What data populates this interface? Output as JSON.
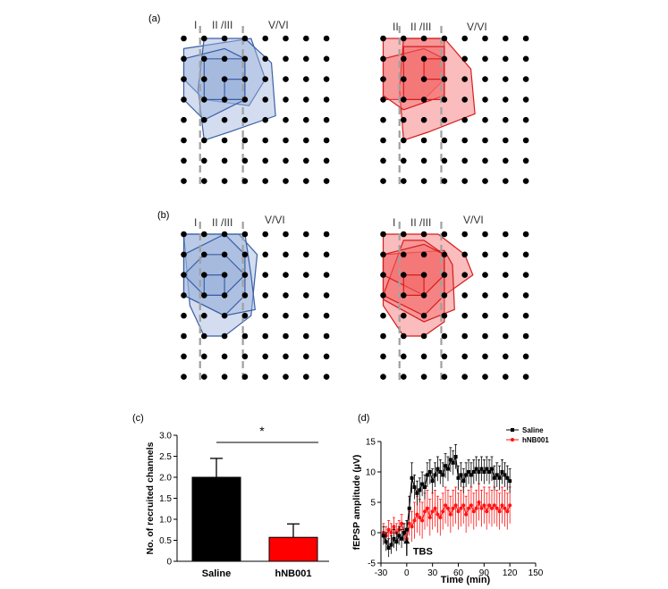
{
  "panels": {
    "a": {
      "label": "(a)",
      "layer_labels": [
        "I",
        "II /III",
        "V/VI"
      ],
      "right_layer_labels": [
        "II",
        "II /III",
        "V/VI"
      ]
    },
    "b": {
      "label": "(b)",
      "layer_labels": [
        "I",
        "II /III",
        "V/VI"
      ]
    },
    "c": {
      "label": "(c)",
      "significance": "*"
    },
    "d": {
      "label": "(d)",
      "annotation": "TBS"
    }
  },
  "colors": {
    "blue_fill": "#9db3dc",
    "blue_stroke": "#3a5fa6",
    "red_fill": "#f46a6a",
    "red_stroke": "#d61c1c",
    "dot": "#000000",
    "dash": "#a0a0a0",
    "saline": "#000000",
    "hnb001": "#ff1111"
  },
  "chart_data": [
    {
      "type": "bar",
      "categories": [
        "Saline",
        "hNB001"
      ],
      "values": [
        2.0,
        0.57
      ],
      "errors": [
        0.45,
        0.32
      ],
      "bar_colors": [
        "#000000",
        "#ff0000"
      ],
      "xlabel": "",
      "ylabel": "No. of recruited channels",
      "ylim": [
        0,
        3.0
      ],
      "yticks": [
        "0",
        "0.5",
        "1.0",
        "1.5",
        "2.0",
        "2.5",
        "3.0"
      ],
      "grid": false
    },
    {
      "type": "line",
      "xlabel": "Time (min)",
      "ylabel": "fEPSP amplitude (µV)",
      "xlim": [
        -30,
        150
      ],
      "ylim": [
        -5,
        15
      ],
      "xticks": [
        "-30",
        "0",
        "30",
        "60",
        "90",
        "120",
        "150"
      ],
      "yticks": [
        "-5",
        "0",
        "5",
        "10",
        "15"
      ],
      "legend_position": "top-right",
      "grid": false,
      "series": [
        {
          "name": "Saline",
          "color": "#000000",
          "marker": "square",
          "x": [
            -27,
            -24,
            -21,
            -18,
            -15,
            -12,
            -9,
            -6,
            -3,
            0,
            3,
            6,
            9,
            12,
            15,
            18,
            21,
            24,
            27,
            30,
            33,
            36,
            39,
            42,
            45,
            48,
            51,
            54,
            57,
            60,
            63,
            66,
            69,
            72,
            75,
            78,
            81,
            84,
            87,
            90,
            93,
            96,
            99,
            102,
            105,
            108,
            111,
            114,
            117,
            120
          ],
          "y": [
            -0.5,
            -1.5,
            -2.5,
            -2.0,
            -1.0,
            -1.5,
            -0.5,
            -1.0,
            0.0,
            0.5,
            4.0,
            9.0,
            7.5,
            6.5,
            7.0,
            8.0,
            7.5,
            9.5,
            10.0,
            8.5,
            9.5,
            10.5,
            10.0,
            9.5,
            11.0,
            10.5,
            12.0,
            11.5,
            12.5,
            9.0,
            9.5,
            8.5,
            9.5,
            10.0,
            9.5,
            10.0,
            10.5,
            10.0,
            10.5,
            10.0,
            10.5,
            10.0,
            10.5,
            9.0,
            9.5,
            9.0,
            10.0,
            9.5,
            9.0,
            8.5
          ],
          "err": [
            1.5,
            1.5,
            1.5,
            1.5,
            1.5,
            1.5,
            1.5,
            1.5,
            1.5,
            1.5,
            2.0,
            2.5,
            2.0,
            2.0,
            2.0,
            2.0,
            2.0,
            2.0,
            2.0,
            2.0,
            2.0,
            2.0,
            2.0,
            2.0,
            2.0,
            2.0,
            2.0,
            2.0,
            2.0,
            2.0,
            2.0,
            2.0,
            2.0,
            2.0,
            2.0,
            2.0,
            2.0,
            2.0,
            2.0,
            2.0,
            2.0,
            2.0,
            2.0,
            2.0,
            2.0,
            2.0,
            2.0,
            2.0,
            2.0,
            2.0
          ]
        },
        {
          "name": "hNB001",
          "color": "#ff1111",
          "marker": "circle",
          "x": [
            -27,
            -24,
            -21,
            -18,
            -15,
            -12,
            -9,
            -6,
            -3,
            0,
            3,
            6,
            9,
            12,
            15,
            18,
            21,
            24,
            27,
            30,
            33,
            36,
            39,
            42,
            45,
            48,
            51,
            54,
            57,
            60,
            63,
            66,
            69,
            72,
            75,
            78,
            81,
            84,
            87,
            90,
            93,
            96,
            99,
            102,
            105,
            108,
            111,
            114,
            117,
            120
          ],
          "y": [
            0.0,
            -0.5,
            0.5,
            0.0,
            1.0,
            0.0,
            0.5,
            1.5,
            0.0,
            -1.0,
            1.5,
            1.0,
            2.0,
            3.0,
            2.5,
            2.0,
            3.5,
            4.0,
            2.5,
            3.5,
            4.0,
            3.0,
            2.5,
            3.5,
            4.5,
            4.0,
            3.0,
            4.0,
            4.5,
            3.5,
            4.0,
            4.5,
            3.0,
            4.0,
            4.5,
            3.5,
            4.0,
            5.0,
            4.0,
            4.5,
            3.5,
            4.5,
            4.0,
            4.5,
            4.0,
            3.5,
            4.5,
            4.0,
            3.5,
            4.5
          ],
          "err": [
            1.5,
            1.5,
            1.5,
            1.5,
            1.5,
            1.5,
            1.5,
            1.5,
            1.5,
            1.5,
            2.0,
            2.5,
            3.0,
            3.0,
            3.0,
            3.0,
            3.0,
            3.0,
            3.0,
            3.0,
            3.0,
            3.0,
            3.0,
            3.0,
            3.0,
            3.0,
            3.0,
            3.0,
            3.0,
            3.0,
            3.0,
            3.0,
            3.0,
            3.0,
            3.0,
            3.0,
            3.0,
            3.0,
            3.0,
            3.0,
            3.0,
            3.0,
            3.0,
            3.0,
            3.0,
            3.0,
            3.0,
            3.0,
            3.0,
            3.0
          ]
        }
      ],
      "annotations": [
        "TBS"
      ]
    }
  ]
}
